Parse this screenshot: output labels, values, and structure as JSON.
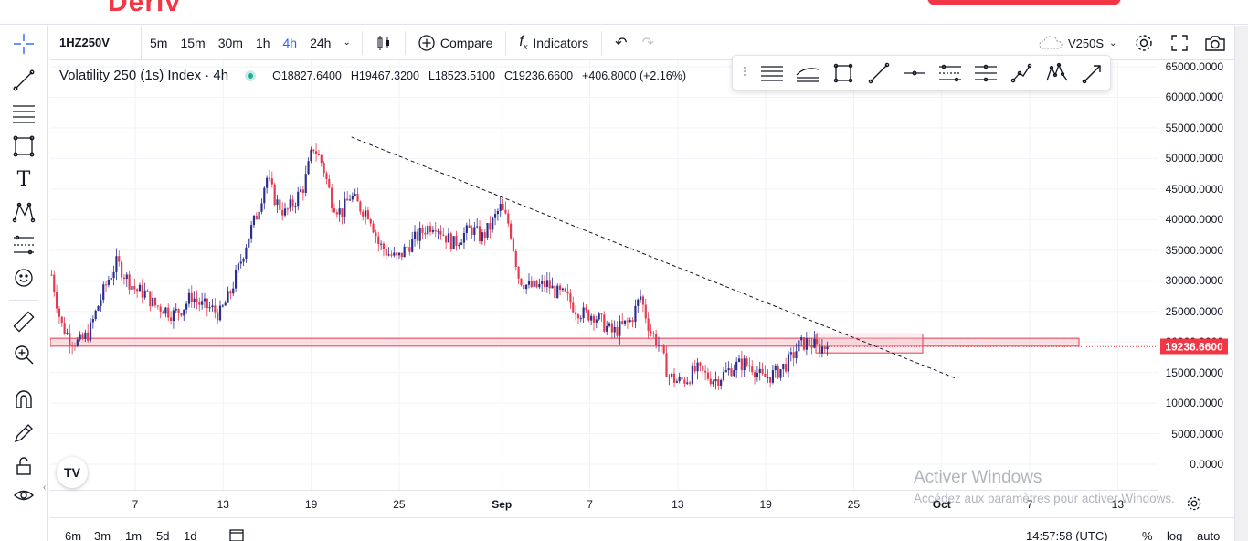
{
  "brand_text": "Deriv",
  "toolbar": {
    "symbol": "1HZ250V",
    "intervals": [
      "5m",
      "15m",
      "30m",
      "1h",
      "4h",
      "24h"
    ],
    "active_interval": "4h",
    "compare_label": "Compare",
    "indicators_label": "Indicators",
    "right_symbol": "V250S"
  },
  "legend": {
    "title": "Volatility 250 (1s) Index · 4h",
    "open": "O18827.6400",
    "high": "H19467.3200",
    "low": "L18523.5100",
    "close": "C19236.6600",
    "change": "+406.8000 (+2.16%)"
  },
  "chart_data": {
    "type": "candlestick",
    "title": "Volatility 250 (1s) Index · 4h",
    "y_tick_labels": [
      "65000.0000",
      "60000.0000",
      "55000.0000",
      "50000.0000",
      "45000.0000",
      "40000.0000",
      "35000.0000",
      "30000.0000",
      "25000.0000",
      "20000.0000",
      "15000.0000",
      "10000.0000",
      "5000.0000",
      "0.0000"
    ],
    "ylim": [
      0,
      65000
    ],
    "x_tick_labels": [
      "7",
      "13",
      "19",
      "25",
      "Sep",
      "7",
      "13",
      "19",
      "25",
      "Oct",
      "7",
      "13"
    ],
    "last_price": "19236.6600",
    "colors": {
      "up": "#2a2e8c",
      "down": "#e53950",
      "last_price": "#f23645",
      "zone": "#f7c9d0"
    },
    "path_points": [
      [
        0,
        31000
      ],
      [
        1,
        23000
      ],
      [
        2,
        20500
      ],
      [
        3,
        19800
      ],
      [
        4,
        21500
      ],
      [
        5,
        26000
      ],
      [
        6,
        30000
      ],
      [
        7,
        33000
      ],
      [
        8,
        30500
      ],
      [
        9,
        28500
      ],
      [
        10,
        28000
      ],
      [
        11,
        26000
      ],
      [
        12,
        25500
      ],
      [
        13,
        24500
      ],
      [
        14,
        25500
      ],
      [
        15,
        27500
      ],
      [
        16,
        26000
      ],
      [
        17,
        25500
      ],
      [
        18,
        24500
      ],
      [
        19,
        27500
      ],
      [
        20,
        32000
      ],
      [
        21,
        37000
      ],
      [
        22,
        41000
      ],
      [
        23,
        47000
      ],
      [
        24,
        43000
      ],
      [
        25,
        41000
      ],
      [
        26,
        43000
      ],
      [
        27,
        45500
      ],
      [
        28,
        52000
      ],
      [
        29,
        49000
      ],
      [
        30,
        43000
      ],
      [
        31,
        41000
      ],
      [
        32,
        44000
      ],
      [
        33,
        42000
      ],
      [
        34,
        41000
      ],
      [
        35,
        36000
      ],
      [
        36,
        34500
      ],
      [
        37,
        33500
      ],
      [
        38,
        35500
      ],
      [
        39,
        37000
      ],
      [
        40,
        38500
      ],
      [
        41,
        39500
      ],
      [
        42,
        37500
      ],
      [
        43,
        36000
      ],
      [
        44,
        37500
      ],
      [
        45,
        38500
      ],
      [
        46,
        37000
      ],
      [
        47,
        39000
      ],
      [
        48,
        42000
      ],
      [
        49,
        39000
      ],
      [
        50,
        30500
      ],
      [
        51,
        29000
      ],
      [
        52,
        29000
      ],
      [
        53,
        29500
      ],
      [
        54,
        28000
      ],
      [
        55,
        27500
      ],
      [
        56,
        25500
      ],
      [
        57,
        24500
      ],
      [
        58,
        24500
      ],
      [
        59,
        23000
      ],
      [
        60,
        21500
      ],
      [
        61,
        22500
      ],
      [
        62,
        23500
      ],
      [
        63,
        27500
      ],
      [
        64,
        22000
      ],
      [
        65,
        19500
      ],
      [
        66,
        14500
      ],
      [
        67,
        13500
      ],
      [
        68,
        14000
      ],
      [
        69,
        15500
      ],
      [
        70,
        14500
      ],
      [
        71,
        13800
      ],
      [
        72,
        14800
      ],
      [
        73,
        16000
      ],
      [
        74,
        16500
      ],
      [
        75,
        16000
      ],
      [
        76,
        14000
      ],
      [
        77,
        14500
      ],
      [
        78,
        15500
      ],
      [
        79,
        17000
      ],
      [
        80,
        19500
      ],
      [
        81,
        20000
      ],
      [
        82,
        19000
      ],
      [
        83,
        19236.66
      ]
    ],
    "trendline": {
      "from": [
        "Aug 21",
        53500
      ],
      "to": [
        "Oct 2",
        14000
      ]
    },
    "support_zone": {
      "low": 19300,
      "high": 20600
    },
    "box": {
      "low": 18200,
      "high": 21300
    }
  },
  "time_display": "14:57:58 (UTC)",
  "bottom": {
    "ranges": [
      "6m",
      "3m",
      "1m",
      "5d",
      "1d"
    ],
    "percent": "%",
    "log": "log",
    "auto": "auto"
  },
  "watermark": {
    "line1": "Activer Windows",
    "line2": "Accédez aux paramètres pour activer Windows."
  }
}
